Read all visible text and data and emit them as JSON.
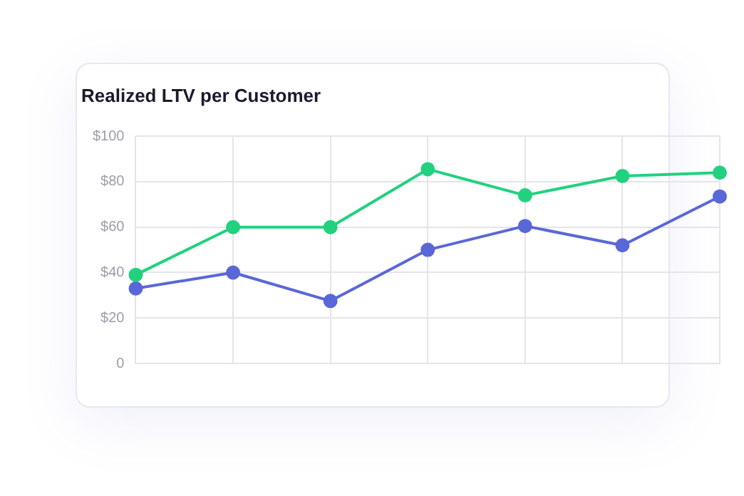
{
  "chart_data": {
    "type": "line",
    "title": "Realized LTV per Customer",
    "categories": [
      null,
      null,
      null,
      null,
      null,
      null,
      null
    ],
    "series": [
      {
        "color": "#22d17f",
        "values": [
          39,
          60,
          60,
          85.5,
          74,
          82.5,
          84
        ]
      },
      {
        "color": "#5a67d8",
        "values": [
          33,
          40,
          27.5,
          50,
          60.5,
          52,
          73.5
        ]
      }
    ],
    "ylim": [
      0,
      100
    ],
    "yticks": [
      0,
      {
        "value": 20,
        "label": "$20"
      },
      {
        "value": 40,
        "label": "$40"
      },
      {
        "value": 60,
        "label": "$60"
      },
      {
        "value": 80,
        "label": "$80"
      },
      {
        "value": 100,
        "label": "$100"
      }
    ],
    "tick_labels": "y",
    "grid": true,
    "legend": false,
    "marker": "circle",
    "line_style": "solid"
  }
}
